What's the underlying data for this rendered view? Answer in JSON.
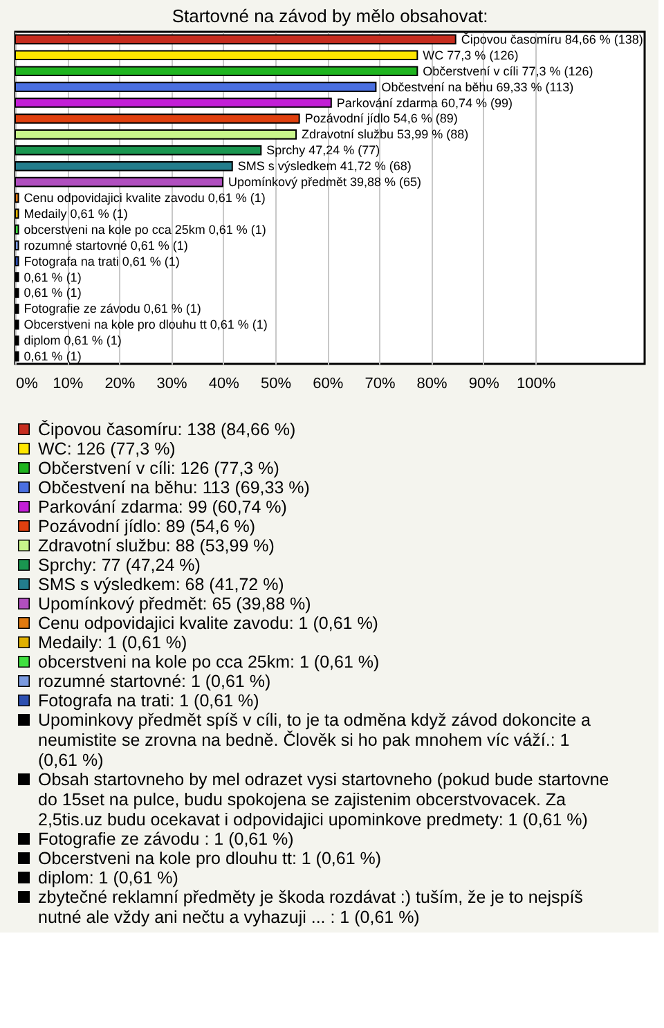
{
  "chart_data": {
    "type": "bar",
    "orientation": "horizontal",
    "title": "Startovné na závod by mělo obsahovat:",
    "categories": [
      "Čipovou časomíru",
      "WC",
      "Občerstvení v cíli",
      "Občestvení na běhu",
      "Parkování zdarma",
      "Pozávodní jídlo",
      "Zdravotní službu",
      "Sprchy",
      "SMS s výsledkem",
      "Upomínkový předmět",
      "Cenu odpovidajici kvalite zavodu",
      "Medaily",
      "obcerstveni na kole po cca 25km",
      "rozumné startovné",
      "Fotografa na trati",
      null,
      null,
      "Fotografie ze závodu ",
      "Obcerstveni na kole pro dlouhu tt",
      "diplom",
      null
    ],
    "series": [
      {
        "name": "Čipovou časomíru: 138 (84,66 %)",
        "color": "#c62d1f",
        "values": [
          84.66,
          null,
          null,
          null,
          null,
          null,
          null,
          null,
          null,
          null,
          null,
          null,
          null,
          null,
          null,
          null,
          null,
          null,
          null,
          null,
          null
        ],
        "value_labels": [
          "84,66 % (138)",
          null,
          null,
          null,
          null,
          null,
          null,
          null,
          null,
          null,
          null,
          null,
          null,
          null,
          null,
          null,
          null,
          null,
          null,
          null,
          null
        ]
      },
      {
        "name": "WC: 126 (77,3 %)",
        "color": "#ffe600",
        "values": [
          null,
          77.3,
          null,
          null,
          null,
          null,
          null,
          null,
          null,
          null,
          null,
          null,
          null,
          null,
          null,
          null,
          null,
          null,
          null,
          null,
          null
        ],
        "value_labels": [
          null,
          "77,3 % (126)",
          null,
          null,
          null,
          null,
          null,
          null,
          null,
          null,
          null,
          null,
          null,
          null,
          null,
          null,
          null,
          null,
          null,
          null,
          null
        ]
      },
      {
        "name": "Občerstvení v cíli: 126 (77,3 %)",
        "color": "#1fb41f",
        "values": [
          null,
          null,
          77.3,
          null,
          null,
          null,
          null,
          null,
          null,
          null,
          null,
          null,
          null,
          null,
          null,
          null,
          null,
          null,
          null,
          null,
          null
        ],
        "value_labels": [
          null,
          null,
          "77,3 % (126)",
          null,
          null,
          null,
          null,
          null,
          null,
          null,
          null,
          null,
          null,
          null,
          null,
          null,
          null,
          null,
          null,
          null,
          null
        ]
      },
      {
        "name": "Občestvení na běhu: 113 (69,33 %)",
        "color": "#4a6fe0",
        "values": [
          null,
          null,
          null,
          69.33,
          null,
          null,
          null,
          null,
          null,
          null,
          null,
          null,
          null,
          null,
          null,
          null,
          null,
          null,
          null,
          null,
          null
        ],
        "value_labels": [
          null,
          null,
          null,
          "69,33 % (113)",
          null,
          null,
          null,
          null,
          null,
          null,
          null,
          null,
          null,
          null,
          null,
          null,
          null,
          null,
          null,
          null,
          null
        ]
      },
      {
        "name": "Parkování zdarma: 99 (60,74 %)",
        "color": "#c21fd6",
        "values": [
          null,
          null,
          null,
          null,
          60.74,
          null,
          null,
          null,
          null,
          null,
          null,
          null,
          null,
          null,
          null,
          null,
          null,
          null,
          null,
          null,
          null
        ],
        "value_labels": [
          null,
          null,
          null,
          null,
          "60,74 % (99)",
          null,
          null,
          null,
          null,
          null,
          null,
          null,
          null,
          null,
          null,
          null,
          null,
          null,
          null,
          null,
          null
        ]
      },
      {
        "name": "Pozávodní jídlo: 89 (54,6 %)",
        "color": "#e0400f",
        "values": [
          null,
          null,
          null,
          null,
          null,
          54.6,
          null,
          null,
          null,
          null,
          null,
          null,
          null,
          null,
          null,
          null,
          null,
          null,
          null,
          null,
          null
        ],
        "value_labels": [
          null,
          null,
          null,
          null,
          null,
          "54,6 % (89)",
          null,
          null,
          null,
          null,
          null,
          null,
          null,
          null,
          null,
          null,
          null,
          null,
          null,
          null,
          null
        ]
      },
      {
        "name": "Zdravotní službu: 88 (53,99 %)",
        "color": "#c8f58a",
        "values": [
          null,
          null,
          null,
          null,
          null,
          null,
          53.99,
          null,
          null,
          null,
          null,
          null,
          null,
          null,
          null,
          null,
          null,
          null,
          null,
          null,
          null
        ],
        "value_labels": [
          null,
          null,
          null,
          null,
          null,
          null,
          "53,99 % (88)",
          null,
          null,
          null,
          null,
          null,
          null,
          null,
          null,
          null,
          null,
          null,
          null,
          null,
          null
        ]
      },
      {
        "name": "Sprchy: 77 (47,24 %)",
        "color": "#1a9650",
        "values": [
          null,
          null,
          null,
          null,
          null,
          null,
          null,
          47.24,
          null,
          null,
          null,
          null,
          null,
          null,
          null,
          null,
          null,
          null,
          null,
          null,
          null
        ],
        "value_labels": [
          null,
          null,
          null,
          null,
          null,
          null,
          null,
          "47,24 % (77)",
          null,
          null,
          null,
          null,
          null,
          null,
          null,
          null,
          null,
          null,
          null,
          null,
          null
        ]
      },
      {
        "name": "SMS s výsledkem: 68 (41,72 %)",
        "color": "#237d8c",
        "values": [
          null,
          null,
          null,
          null,
          null,
          null,
          null,
          null,
          41.72,
          null,
          null,
          null,
          null,
          null,
          null,
          null,
          null,
          null,
          null,
          null,
          null
        ],
        "value_labels": [
          null,
          null,
          null,
          null,
          null,
          null,
          null,
          null,
          "41,72 % (68)",
          null,
          null,
          null,
          null,
          null,
          null,
          null,
          null,
          null,
          null,
          null,
          null
        ]
      },
      {
        "name": "Upomínkový předmět: 65 (39,88 %)",
        "color": "#b04fbf",
        "values": [
          null,
          null,
          null,
          null,
          null,
          null,
          null,
          null,
          null,
          39.88,
          null,
          null,
          null,
          null,
          null,
          null,
          null,
          null,
          null,
          null,
          null
        ],
        "value_labels": [
          null,
          null,
          null,
          null,
          null,
          null,
          null,
          null,
          null,
          "39,88 % (65)",
          null,
          null,
          null,
          null,
          null,
          null,
          null,
          null,
          null,
          null,
          null
        ]
      },
      {
        "name": "Cenu odpovidajici kvalite zavodu: 1 (0,61 %)",
        "color": "#e07a10",
        "values": [
          null,
          null,
          null,
          null,
          null,
          null,
          null,
          null,
          null,
          null,
          0.61,
          null,
          null,
          null,
          null,
          null,
          null,
          null,
          null,
          null,
          null
        ],
        "value_labels": [
          null,
          null,
          null,
          null,
          null,
          null,
          null,
          null,
          null,
          null,
          "0,61 % (1)",
          null,
          null,
          null,
          null,
          null,
          null,
          null,
          null,
          null,
          null
        ]
      },
      {
        "name": "Medaily: 1 (0,61 %)",
        "color": "#e0b000",
        "values": [
          null,
          null,
          null,
          null,
          null,
          null,
          null,
          null,
          null,
          null,
          null,
          0.61,
          null,
          null,
          null,
          null,
          null,
          null,
          null,
          null,
          null
        ],
        "value_labels": [
          null,
          null,
          null,
          null,
          null,
          null,
          null,
          null,
          null,
          null,
          null,
          "0,61 % (1)",
          null,
          null,
          null,
          null,
          null,
          null,
          null,
          null,
          null
        ]
      },
      {
        "name": "obcerstveni na kole po cca 25km: 1 (0,61 %)",
        "color": "#40e040",
        "values": [
          null,
          null,
          null,
          null,
          null,
          null,
          null,
          null,
          null,
          null,
          null,
          null,
          0.61,
          null,
          null,
          null,
          null,
          null,
          null,
          null,
          null
        ],
        "value_labels": [
          null,
          null,
          null,
          null,
          null,
          null,
          null,
          null,
          null,
          null,
          null,
          null,
          "0,61 % (1)",
          null,
          null,
          null,
          null,
          null,
          null,
          null,
          null
        ]
      },
      {
        "name": "rozumné startovné: 1 (0,61 %)",
        "color": "#7a9ae0",
        "values": [
          null,
          null,
          null,
          null,
          null,
          null,
          null,
          null,
          null,
          null,
          null,
          null,
          null,
          0.61,
          null,
          null,
          null,
          null,
          null,
          null,
          null
        ],
        "value_labels": [
          null,
          null,
          null,
          null,
          null,
          null,
          null,
          null,
          null,
          null,
          null,
          null,
          null,
          "0,61 % (1)",
          null,
          null,
          null,
          null,
          null,
          null,
          null
        ]
      },
      {
        "name": "Fotografa na trati: 1 (0,61 %)",
        "color": "#2c4fb0",
        "values": [
          null,
          null,
          null,
          null,
          null,
          null,
          null,
          null,
          null,
          null,
          null,
          null,
          null,
          null,
          0.61,
          null,
          null,
          null,
          null,
          null,
          null
        ],
        "value_labels": [
          null,
          null,
          null,
          null,
          null,
          null,
          null,
          null,
          null,
          null,
          null,
          null,
          null,
          null,
          "0,61 % (1)",
          null,
          null,
          null,
          null,
          null,
          null
        ]
      },
      {
        "name": "Upominkovy předmět spíš v cíli, to je ta odměna když závod dokoncite a neumistite se zrovna na bedně. Člověk si ho pak mnohem víc váží.: 1 (0,61 %)",
        "color": "#000000",
        "values": [
          null,
          null,
          null,
          null,
          null,
          null,
          null,
          null,
          null,
          null,
          null,
          null,
          null,
          null,
          null,
          0.61,
          null,
          null,
          null,
          null,
          null
        ],
        "value_labels": [
          null,
          null,
          null,
          null,
          null,
          null,
          null,
          null,
          null,
          null,
          null,
          null,
          null,
          null,
          null,
          "0,61 % (1)",
          null,
          null,
          null,
          null,
          null
        ]
      },
      {
        "name": "Obsah startovneho by mel odrazet vysi startovneho (pokud bude startovne do 15set na pulce, budu spokojena se zajistenim obcerstvovacek. Za 2,5tis.uz budu ocekavat i odpovidajici upominkove predmety: 1 (0,61 %)",
        "color": "#000000",
        "values": [
          null,
          null,
          null,
          null,
          null,
          null,
          null,
          null,
          null,
          null,
          null,
          null,
          null,
          null,
          null,
          null,
          0.61,
          null,
          null,
          null,
          null
        ],
        "value_labels": [
          null,
          null,
          null,
          null,
          null,
          null,
          null,
          null,
          null,
          null,
          null,
          null,
          null,
          null,
          null,
          null,
          "0,61 % (1)",
          null,
          null,
          null,
          null
        ]
      },
      {
        "name": "Fotografie ze závodu : 1 (0,61 %)",
        "color": "#000000",
        "values": [
          null,
          null,
          null,
          null,
          null,
          null,
          null,
          null,
          null,
          null,
          null,
          null,
          null,
          null,
          null,
          null,
          null,
          0.61,
          null,
          null,
          null
        ],
        "value_labels": [
          null,
          null,
          null,
          null,
          null,
          null,
          null,
          null,
          null,
          null,
          null,
          null,
          null,
          null,
          null,
          null,
          null,
          "0,61 % (1)",
          null,
          null,
          null
        ]
      },
      {
        "name": "Obcerstveni na kole pro dlouhu tt: 1 (0,61 %)",
        "color": "#000000",
        "values": [
          null,
          null,
          null,
          null,
          null,
          null,
          null,
          null,
          null,
          null,
          null,
          null,
          null,
          null,
          null,
          null,
          null,
          null,
          0.61,
          null,
          null
        ],
        "value_labels": [
          null,
          null,
          null,
          null,
          null,
          null,
          null,
          null,
          null,
          null,
          null,
          null,
          null,
          null,
          null,
          null,
          null,
          null,
          "0,61 % (1)",
          null,
          null
        ]
      },
      {
        "name": "diplom: 1 (0,61 %)",
        "color": "#000000",
        "values": [
          null,
          null,
          null,
          null,
          null,
          null,
          null,
          null,
          null,
          null,
          null,
          null,
          null,
          null,
          null,
          null,
          null,
          null,
          null,
          0.61,
          null
        ],
        "value_labels": [
          null,
          null,
          null,
          null,
          null,
          null,
          null,
          null,
          null,
          null,
          null,
          null,
          null,
          null,
          null,
          null,
          null,
          null,
          null,
          "0,61 % (1)",
          null
        ]
      },
      {
        "name": "zbytečné reklamní předměty je škoda rozdávat :) tuším, že je to nejspíš nutné ale vždy ani nečtu a vyhazuji ... : 1 (0,61 %)",
        "color": "#000000",
        "values": [
          null,
          null,
          null,
          null,
          null,
          null,
          null,
          null,
          null,
          null,
          null,
          null,
          null,
          null,
          null,
          null,
          null,
          null,
          null,
          null,
          0.61
        ],
        "value_labels": [
          null,
          null,
          null,
          null,
          null,
          null,
          null,
          null,
          null,
          null,
          null,
          null,
          null,
          null,
          null,
          null,
          null,
          null,
          null,
          null,
          "0,61 % (1)"
        ]
      }
    ],
    "xlim": [
      0,
      121
    ],
    "xticks": [
      {
        "value": 0,
        "label": "0%"
      },
      {
        "value": 10,
        "label": "10%"
      },
      {
        "value": 20,
        "label": "20%"
      },
      {
        "value": 30,
        "label": "30%"
      },
      {
        "value": 40,
        "label": "40%"
      },
      {
        "value": 50,
        "label": "50%"
      },
      {
        "value": 60,
        "label": "60%"
      },
      {
        "value": 70,
        "label": "70%"
      },
      {
        "value": 80,
        "label": "80%"
      },
      {
        "value": 90,
        "label": "90%"
      },
      {
        "value": 100,
        "label": "100%"
      }
    ],
    "grid": "x",
    "tick_labels": "x",
    "legend": "bottom"
  }
}
